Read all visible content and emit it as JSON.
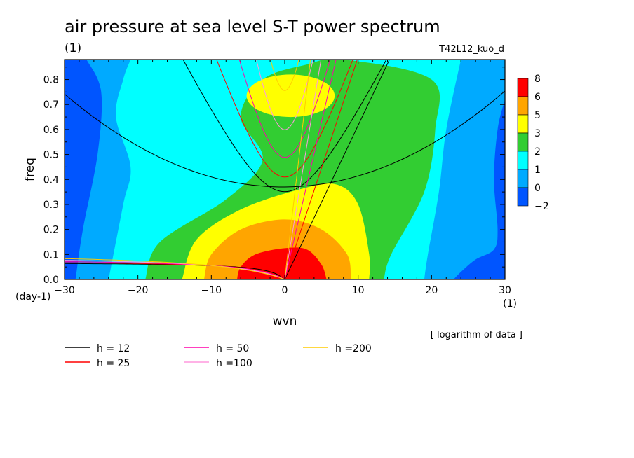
{
  "chart_data": {
    "type": "heatmap",
    "title": "air pressure at sea level S-T power spectrum",
    "subtitle_left": "(1)",
    "subtitle_right": "T42L12_kuo_d",
    "xlabel": "wvn",
    "ylabel": "freq",
    "x_unit_label": "(1)",
    "y_unit_label": "(day-1)",
    "note": "[ logarithm of data ]",
    "xlim": [
      -30,
      30
    ],
    "ylim": [
      0,
      0.88
    ],
    "x_ticks": [
      -30,
      -20,
      -10,
      0,
      10,
      20,
      30
    ],
    "y_ticks": [
      0.0,
      0.1,
      0.2,
      0.3,
      0.4,
      0.5,
      0.6,
      0.7,
      0.8
    ],
    "colorbar": {
      "labels": [
        "8",
        "6",
        "5",
        "3",
        "2",
        "1",
        "0",
        "-2"
      ],
      "colors": [
        "#ff0000",
        "#ffa500",
        "#ffff00",
        "#32cd32",
        "#00ffff",
        "#00aaff",
        "#0055ff"
      ]
    },
    "contour_regions": [
      {
        "level": "peak",
        "color": "#ff0000",
        "description_points": [
          [
            -6.5,
            0
          ],
          [
            -6,
            0.05
          ],
          [
            -4,
            0.1
          ],
          [
            0,
            0.125
          ],
          [
            3,
            0.12
          ],
          [
            5,
            0.06
          ],
          [
            5.7,
            0
          ]
        ]
      },
      {
        "level": "5-6",
        "color": "#ffa500",
        "description_points": [
          [
            -11,
            0
          ],
          [
            -10,
            0.1
          ],
          [
            -6,
            0.2
          ],
          [
            0,
            0.24
          ],
          [
            5,
            0.2
          ],
          [
            8.5,
            0.1
          ],
          [
            9,
            0
          ]
        ]
      },
      {
        "level": "3-5",
        "color": "#ffff00",
        "description_points": [
          [
            -14,
            0
          ],
          [
            -12,
            0.16
          ],
          [
            -6,
            0.28
          ],
          [
            2,
            0.36
          ],
          [
            7,
            0.38
          ],
          [
            10,
            0.3
          ],
          [
            11.5,
            0.1
          ],
          [
            11.5,
            0
          ]
        ]
      },
      {
        "level": "2-3",
        "color": "#32cd32",
        "description_points": [
          [
            -19,
            0
          ],
          [
            -17,
            0.15
          ],
          [
            -8,
            0.32
          ],
          [
            -3,
            0.48
          ],
          [
            -6,
            0.65
          ],
          [
            -3,
            0.8
          ],
          [
            3,
            0.86
          ],
          [
            8,
            0.88
          ],
          [
            20,
            0.8
          ],
          [
            20.5,
            0.6
          ],
          [
            19,
            0.35
          ],
          [
            14.5,
            0.1
          ],
          [
            13.5,
            0
          ]
        ]
      },
      {
        "level": "0-1",
        "color": "#00aaff",
        "description_points": [
          [
            -24,
            0
          ],
          [
            -22,
            0.3
          ],
          [
            -21,
            0.45
          ],
          [
            -23,
            0.65
          ],
          [
            -22,
            0.8
          ],
          [
            -21,
            0.88
          ]
        ]
      }
    ],
    "legend": [
      {
        "name": "h = 12",
        "color": "#000000"
      },
      {
        "name": "h = 50",
        "color": "#ff00aa"
      },
      {
        "name": "h =200",
        "color": "#ffcc00"
      },
      {
        "name": "h = 25",
        "color": "#ff0000"
      },
      {
        "name": "h =100",
        "color": "#ff99dd"
      }
    ]
  }
}
